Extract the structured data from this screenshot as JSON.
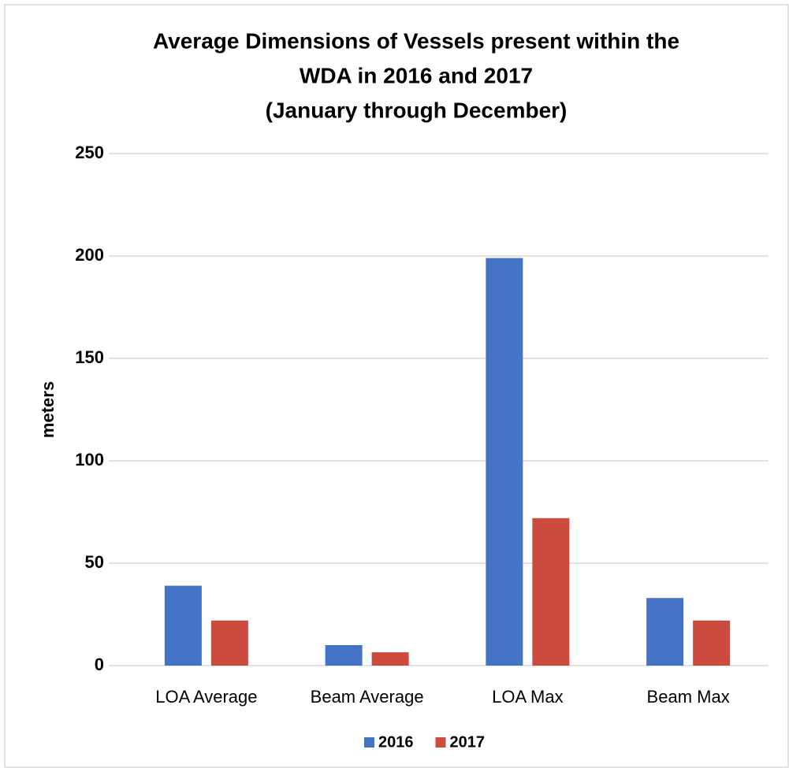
{
  "chart_data": {
    "type": "bar",
    "title": [
      "Average Dimensions of Vessels present within the",
      "WDA in 2016 and 2017",
      "(January through December)"
    ],
    "y_label": "meters",
    "categories": [
      "LOA Average",
      "Beam Average",
      "LOA Max",
      "Beam Max"
    ],
    "series": [
      {
        "name": "2016",
        "color": "#4472c4",
        "values": [
          39,
          10,
          199,
          33
        ]
      },
      {
        "name": "2017",
        "color": "#cc4b3f",
        "values": [
          22,
          6.5,
          72,
          22
        ]
      }
    ],
    "ylim": [
      0,
      250
    ],
    "yticks": [
      0,
      50,
      100,
      150,
      200,
      250
    ],
    "grid": true,
    "legend": "bottom"
  }
}
